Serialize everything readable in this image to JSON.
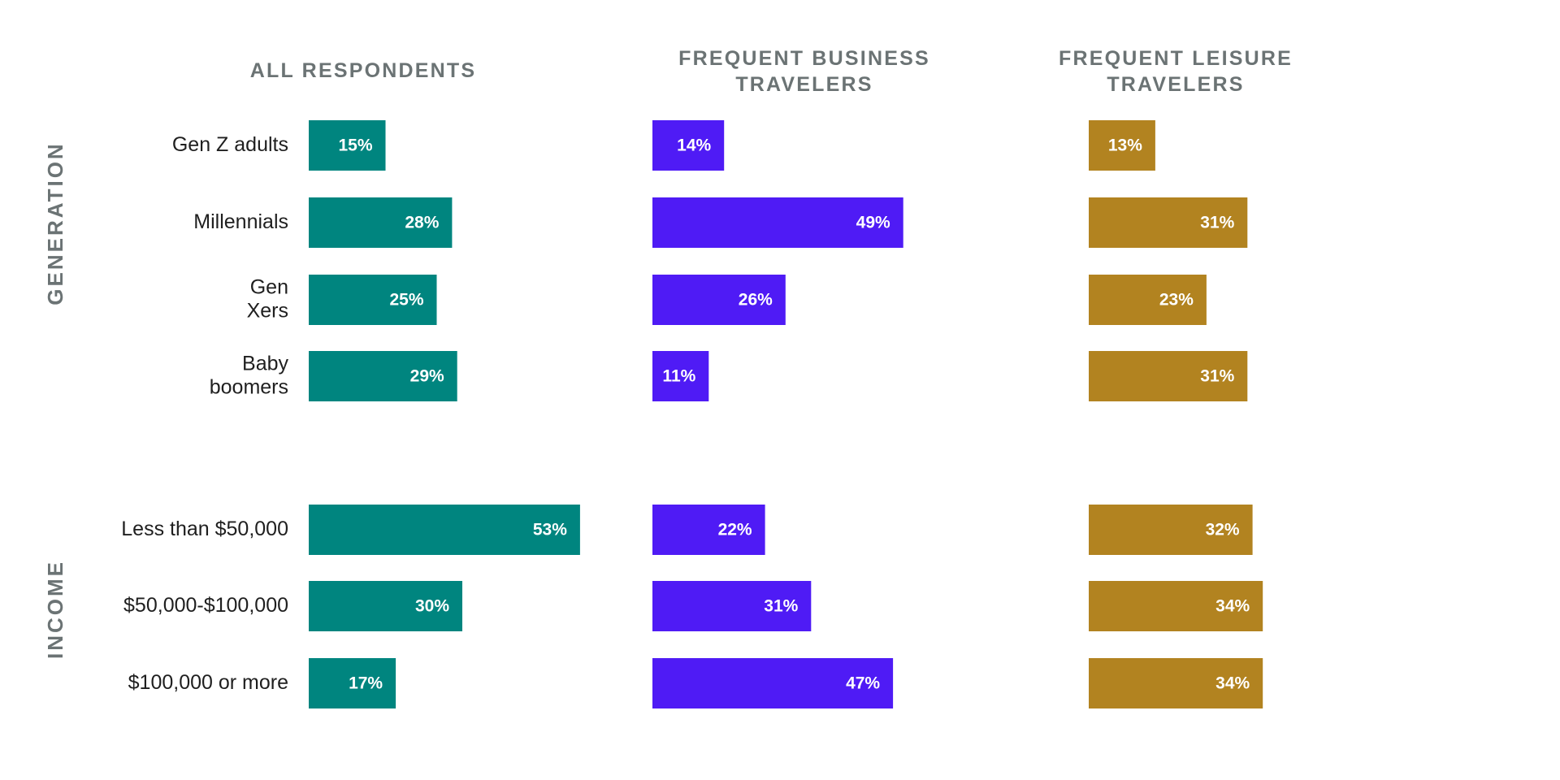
{
  "chart_data": {
    "type": "bar",
    "orientation": "horizontal",
    "panels": [
      {
        "title": "ALL RESPONDENTS",
        "color": "#00857f"
      },
      {
        "title": "FREQUENT BUSINESS TRAVELERS",
        "color": "#4f1bf5"
      },
      {
        "title": "FREQUENT LEISURE TRAVELERS",
        "color": "#b28320"
      }
    ],
    "groups": [
      {
        "name": "GENERATION",
        "categories": [
          "Gen Z adults",
          "Millennials",
          "Gen Xers",
          "Baby boomers"
        ],
        "values": [
          [
            15,
            28,
            25,
            29
          ],
          [
            14,
            49,
            26,
            11
          ],
          [
            13,
            31,
            23,
            31
          ]
        ]
      },
      {
        "name": "INCOME",
        "categories": [
          "Less than $50,000",
          "$50,000-$100,000",
          "$100,000 or more"
        ],
        "values": [
          [
            53,
            30,
            17
          ],
          [
            22,
            31,
            47
          ],
          [
            32,
            34,
            34
          ]
        ]
      }
    ],
    "value_suffix": "%",
    "grid": false,
    "legend": "none"
  }
}
